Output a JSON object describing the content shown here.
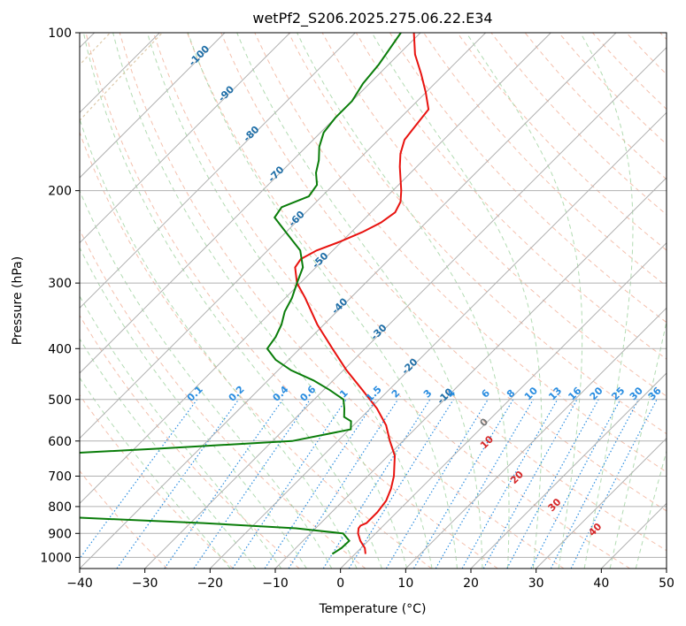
{
  "chart_data": {
    "type": "line",
    "diagram": "skew-T log-P",
    "title": "wetPf2_S206.2025.275.06.22.E34",
    "xlabel": "Temperature (°C)",
    "ylabel": "Pressure (hPa)",
    "xlim": [
      -40,
      50
    ],
    "ylim": [
      1050,
      100
    ],
    "y_scale": "log",
    "x_ticks": [
      -40,
      -30,
      -20,
      -10,
      0,
      10,
      20,
      30,
      40,
      50
    ],
    "x_tick_labels": [
      "−40",
      "−30",
      "−20",
      "−10",
      "0",
      "10",
      "20",
      "30",
      "40",
      "50"
    ],
    "y_ticks": [
      100,
      200,
      300,
      400,
      500,
      600,
      700,
      800,
      900,
      1000
    ],
    "y_tick_labels": [
      "100",
      "200",
      "300",
      "400",
      "500",
      "600",
      "700",
      "800",
      "900",
      "1000"
    ],
    "grid": true,
    "colors": {
      "temperature": "#e8130f",
      "dewpoint": "#0a7d0a",
      "isotherm_labels": "#1f6fa8",
      "mixing_ratio": "#2a8de0",
      "moist_adiabat_labels": "#d62728",
      "dry_adiabats": "#f0a58a",
      "moist_adiabats": "#9fd29f",
      "grid": "#b0b0b0"
    },
    "series": [
      {
        "key": "temperature",
        "p": [
          985,
          960,
          930,
          900,
          880,
          870,
          860,
          820,
          780,
          740,
          700,
          640,
          600,
          560,
          520,
          480,
          440,
          400,
          360,
          320,
          300,
          280,
          270,
          260,
          250,
          240,
          230,
          220,
          210,
          200,
          190,
          180,
          170,
          160,
          150,
          140,
          130,
          120,
          110,
          100
        ],
        "t": [
          1.6,
          0.6,
          -1.2,
          -2.7,
          -3.4,
          -3.5,
          -3.0,
          -3.0,
          -3.4,
          -4.5,
          -6.0,
          -9.0,
          -12.0,
          -15.0,
          -19.0,
          -24.0,
          -29.5,
          -35.0,
          -41.0,
          -47.0,
          -50.5,
          -53.2,
          -53.6,
          -52.5,
          -50.2,
          -48.3,
          -46.9,
          -46.3,
          -47.1,
          -48.7,
          -50.6,
          -52.6,
          -54.5,
          -56.0,
          -56.5,
          -57.0,
          -60.0,
          -63.5,
          -67.5,
          -71.0
        ]
      },
      {
        "key": "dewpoint",
        "p": [
          985,
          960,
          930,
          900,
          880,
          860,
          840,
          820,
          800,
          780,
          760,
          740,
          720,
          710,
          700,
          640,
          620,
          600,
          570,
          550,
          540,
          520,
          500,
          480,
          460,
          440,
          420,
          400,
          380,
          360,
          340,
          320,
          300,
          280,
          260,
          240,
          225,
          215,
          205,
          195,
          185,
          175,
          165,
          155,
          145,
          135,
          125,
          115,
          100
        ],
        "td": [
          -3.5,
          -3.0,
          -2.9,
          -5.0,
          -13.0,
          -28.0,
          -48.0,
          -62.0,
          -70.0,
          -72.0,
          -72.0,
          -72.0,
          -72.0,
          -68.0,
          -71.0,
          -66.0,
          -46.0,
          -27.0,
          -19.8,
          -21.0,
          -22.7,
          -24.0,
          -25.5,
          -29.0,
          -33.0,
          -38.0,
          -42.0,
          -45.0,
          -45.5,
          -46.5,
          -48.0,
          -49.0,
          -50.5,
          -52.0,
          -55.0,
          -60.0,
          -64.0,
          -64.5,
          -62.0,
          -62.5,
          -64.5,
          -66.0,
          -68.0,
          -69.5,
          -70.0,
          -70.0,
          -71.0,
          -71.5,
          -73.0
        ]
      }
    ],
    "isotherm_labels": [
      "-100",
      "-90",
      "-80",
      "-70",
      "-60",
      "-50",
      "-40",
      "-30",
      "-20",
      "-10",
      "0"
    ],
    "mixing_ratio_labels": [
      "0.1",
      "0.2",
      "0.4",
      "0.6",
      "1",
      "1.5",
      "2",
      "3",
      "4",
      "6",
      "8",
      "10",
      "13",
      "16",
      "20",
      "25",
      "30",
      "36"
    ],
    "moist_adiabat_labels": [
      "10",
      "20",
      "30",
      "40"
    ]
  }
}
